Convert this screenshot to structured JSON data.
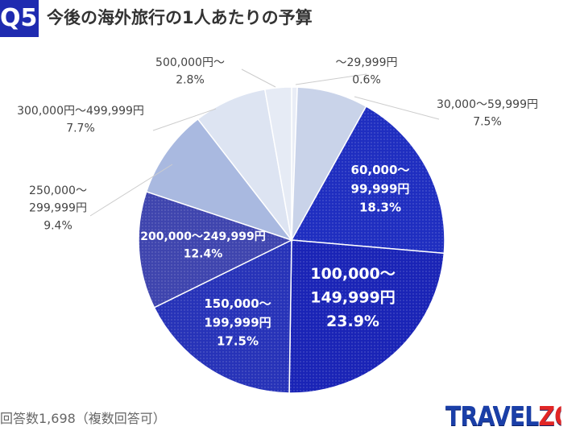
{
  "header": {
    "question_badge": "Q5",
    "title": "今後の海外旅行の1人あたりの予算"
  },
  "chart_data": {
    "type": "pie",
    "title": "今後の海外旅行の1人あたりの予算",
    "unit": "%",
    "slices": [
      {
        "label": "〜29,999円",
        "label_lines": [
          "〜29,999円"
        ],
        "value": 0.6,
        "value_text": "0.6%",
        "color": "#e9edf6",
        "label_position": "outside"
      },
      {
        "label": "30,000〜59,999円",
        "label_lines": [
          "30,000〜59,999円"
        ],
        "value": 7.5,
        "value_text": "7.5%",
        "color": "#c9d3e9",
        "label_position": "outside"
      },
      {
        "label": "60,000〜99,999円",
        "label_lines": [
          "60,000〜",
          "99,999円"
        ],
        "value": 18.3,
        "value_text": "18.3%",
        "color": "#1f2ec0",
        "label_position": "inside"
      },
      {
        "label": "100,000〜149,999円",
        "label_lines": [
          "100,000〜",
          "149,999円"
        ],
        "value": 23.9,
        "value_text": "23.9%",
        "color": "#1a24b6",
        "label_position": "inside"
      },
      {
        "label": "150,000〜199,999円",
        "label_lines": [
          "150,000〜",
          "199,999円"
        ],
        "value": 17.5,
        "value_text": "17.5%",
        "color": "#2733b8",
        "label_position": "inside"
      },
      {
        "label": "200,000〜249,999円",
        "label_lines": [
          "200,000〜249,999円"
        ],
        "value": 12.4,
        "value_text": "12.4%",
        "color": "#3f45ae",
        "label_position": "inside"
      },
      {
        "label": "250,000〜299,999円",
        "label_lines": [
          "250,000〜",
          "299,999円"
        ],
        "value": 9.4,
        "value_text": "9.4%",
        "color": "#a9b9e0",
        "label_position": "outside"
      },
      {
        "label": "300,000円〜499,999円",
        "label_lines": [
          "300,000円〜499,999円"
        ],
        "value": 7.7,
        "value_text": "7.7%",
        "color": "#dde4f2",
        "label_position": "outside"
      },
      {
        "label": "500,000円〜",
        "label_lines": [
          "500,000円〜"
        ],
        "value": 2.8,
        "value_text": "2.8%",
        "color": "#e6ebf5",
        "label_position": "outside"
      }
    ],
    "start_angle_deg": 0,
    "direction": "clockwise",
    "legend": "none"
  },
  "footnote": "回答数1,698（複数回答可）",
  "logo": {
    "text_main": "TRAVEL",
    "text_accent": "ZOO"
  }
}
